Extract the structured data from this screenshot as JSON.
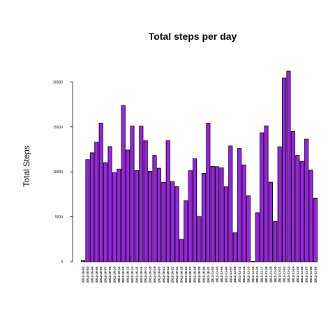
{
  "chart_data": {
    "type": "bar",
    "title": "Total steps per day",
    "xlabel": "",
    "ylabel": "Total Steps",
    "ylim": [
      0,
      21194
    ],
    "yticks": [
      0,
      5000,
      10000,
      15000,
      20000
    ],
    "yticklabels": [
      "0",
      "5000",
      "10000",
      "15000",
      "20000"
    ],
    "bar_color": "#a020f0",
    "bar_border_color": "#000000",
    "grid": false,
    "legend": "none",
    "categories": [
      "2012-10-02",
      "2012-10-03",
      "2012-10-04",
      "2012-10-05",
      "2012-10-06",
      "2012-10-07",
      "2012-10-09",
      "2012-10-10",
      "2012-10-11",
      "2012-10-12",
      "2012-10-13",
      "2012-10-14",
      "2012-10-15",
      "2012-10-16",
      "2012-10-17",
      "2012-10-18",
      "2012-10-19",
      "2012-10-20",
      "2012-10-21",
      "2012-10-22",
      "2012-10-23",
      "2012-10-24",
      "2012-10-25",
      "2012-10-26",
      "2012-10-27",
      "2012-10-28",
      "2012-10-29",
      "2012-10-30",
      "2012-10-31",
      "2012-11-02",
      "2012-11-03",
      "2012-11-05",
      "2012-11-06",
      "2012-11-07",
      "2012-11-08",
      "2012-11-11",
      "2012-11-12",
      "2012-11-13",
      "2012-11-15",
      "2012-11-16",
      "2012-11-17",
      "2012-11-18",
      "2012-11-19",
      "2012-11-20",
      "2012-11-21",
      "2012-11-22",
      "2012-11-23",
      "2012-11-24",
      "2012-11-25",
      "2012-11-26",
      "2012-11-27",
      "2012-11-28",
      "2012-11-29"
    ],
    "values": [
      126,
      11352,
      12116,
      13294,
      15420,
      11015,
      12811,
      9900,
      10304,
      17382,
      12426,
      15098,
      10139,
      15084,
      13452,
      10056,
      11829,
      10395,
      8821,
      13460,
      8918,
      8355,
      2492,
      6778,
      10119,
      11458,
      5018,
      9819,
      15414,
      10600,
      10571,
      10439,
      8334,
      12883,
      3219,
      12608,
      10765,
      7336,
      41,
      5441,
      14339,
      15110,
      8841,
      4472,
      12787,
      20427,
      21194,
      14478,
      11834,
      11162,
      13646,
      10183,
      7047
    ]
  }
}
